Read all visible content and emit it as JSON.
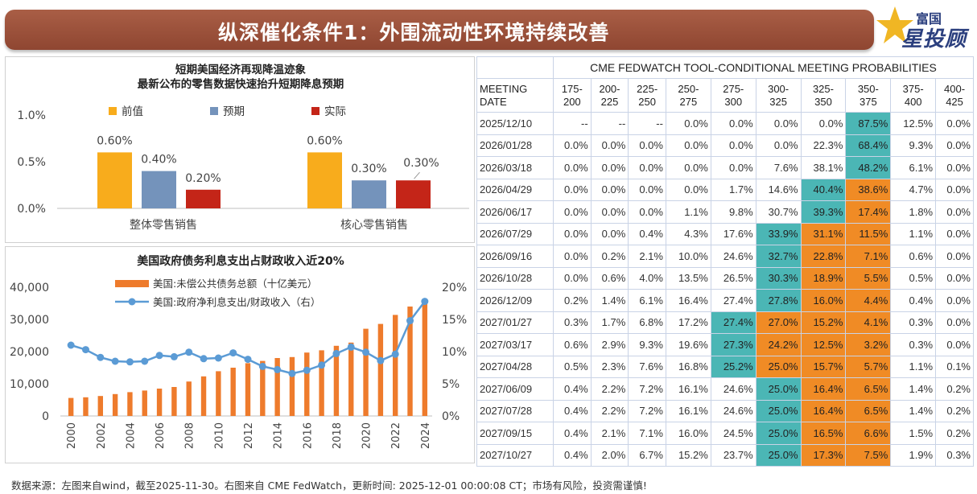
{
  "header": {
    "title": "纵深催化条件1：外围流动性环境持续改善",
    "logo_top": "富国",
    "logo_main": "星投顾"
  },
  "footer": {
    "source": "数据来源：左图来自wind，截至2025-11-30。右图来自 CME FedWatch，更新时间: 2025-12-01 00:00:08 CT；市场有风险，投资需谨慎!"
  },
  "colors": {
    "title_bar": "#9a4f39",
    "prev": "#f8ac1c",
    "expect": "#7493bb",
    "actual": "#c42518",
    "debt_bar": "#ee7b2c",
    "ratio_line": "#5b9bd5",
    "teal_cell": "#4bb6b5",
    "orange_cell": "#f08b25"
  },
  "chart_data": [
    {
      "type": "bar",
      "title": "短期美国经济再现降温迹象",
      "subtitle": "最新公布的零售数据快速抬升短期降息预期",
      "categories": [
        "整体零售销售",
        "核心零售销售"
      ],
      "series": [
        {
          "name": "前值",
          "values": [
            0.6,
            0.6
          ],
          "labels": [
            "0.60%",
            "0.60%"
          ]
        },
        {
          "name": "预期",
          "values": [
            0.4,
            0.3
          ],
          "labels": [
            "0.40%",
            "0.30%"
          ]
        },
        {
          "name": "实际",
          "values": [
            0.2,
            0.3
          ],
          "labels": [
            "0.20%",
            "0.30%"
          ]
        }
      ],
      "yticks": [
        "0.0%",
        "0.5%",
        "1.0%"
      ],
      "ylim": [
        0,
        1.0
      ],
      "legend": "top"
    },
    {
      "type": "bar+line",
      "title": "美国政府债务利息支出占财政收入近20%",
      "x": [
        "2000",
        "2001",
        "2002",
        "2003",
        "2004",
        "2005",
        "2006",
        "2007",
        "2008",
        "2009",
        "2010",
        "2011",
        "2012",
        "2013",
        "2014",
        "2015",
        "2016",
        "2017",
        "2018",
        "2019",
        "2020",
        "2021",
        "2022",
        "2023",
        "2024"
      ],
      "xticks": [
        "2000",
        "2002",
        "2004",
        "2006",
        "2008",
        "2010",
        "2012",
        "2014",
        "2016",
        "2018",
        "2020",
        "2022",
        "2024"
      ],
      "series": [
        {
          "name": "美国:未偿公共债务总额（十亿美元）",
          "axis": "left",
          "values": [
            5600,
            5800,
            6200,
            6800,
            7400,
            7900,
            8500,
            9000,
            10700,
            12300,
            13900,
            15000,
            16400,
            17100,
            18000,
            18300,
            19700,
            20400,
            21800,
            22800,
            27100,
            28600,
            31400,
            34000,
            36200
          ]
        },
        {
          "name": "美国:政府净利息支出/财政收入（右）",
          "axis": "right",
          "values": [
            11.0,
            10.3,
            9.1,
            8.5,
            8.4,
            8.5,
            9.4,
            9.2,
            9.9,
            8.9,
            9.0,
            9.8,
            8.8,
            7.7,
            7.2,
            6.6,
            7.1,
            7.9,
            9.7,
            10.7,
            9.9,
            8.6,
            9.6,
            14.8,
            17.8
          ]
        }
      ],
      "yticks_left": [
        "0",
        "10,000",
        "20,000",
        "30,000",
        "40,000"
      ],
      "ylim_left": [
        0,
        40000
      ],
      "yticks_right": [
        "0%",
        "5%",
        "10%",
        "15%",
        "20%"
      ],
      "ylim_right": [
        0,
        20
      ],
      "legend": "top-left"
    },
    {
      "type": "table",
      "title": "CME FEDWATCH TOOL-CONDITIONAL MEETING PROBABILITIES",
      "meeting_header": [
        "MEETING",
        "DATE"
      ],
      "columns": [
        [
          "175-",
          "200"
        ],
        [
          "200-",
          "225"
        ],
        [
          "225-",
          "250"
        ],
        [
          "250-",
          "275"
        ],
        [
          "275-",
          "300"
        ],
        [
          "300-",
          "325"
        ],
        [
          "325-",
          "350"
        ],
        [
          "350-",
          "375"
        ],
        [
          "375-",
          "400"
        ],
        [
          "400-",
          "425"
        ]
      ],
      "rows": [
        {
          "date": "2025/12/10",
          "cells": [
            "--",
            "--",
            "--",
            "0.0%",
            "0.0%",
            "0.0%",
            "0.0%",
            "87.5%",
            "12.5%",
            "0.0%"
          ],
          "hl": [
            "",
            "",
            "",
            "",
            "",
            "",
            "",
            "t",
            "",
            ""
          ]
        },
        {
          "date": "2026/01/28",
          "cells": [
            "0.0%",
            "0.0%",
            "0.0%",
            "0.0%",
            "0.0%",
            "0.0%",
            "22.3%",
            "68.4%",
            "9.3%",
            "0.0%"
          ],
          "hl": [
            "",
            "",
            "",
            "",
            "",
            "",
            "",
            "t",
            "",
            ""
          ]
        },
        {
          "date": "2026/03/18",
          "cells": [
            "0.0%",
            "0.0%",
            "0.0%",
            "0.0%",
            "0.0%",
            "7.6%",
            "38.1%",
            "48.2%",
            "6.1%",
            "0.0%"
          ],
          "hl": [
            "",
            "",
            "",
            "",
            "",
            "",
            "",
            "t",
            "",
            ""
          ]
        },
        {
          "date": "2026/04/29",
          "cells": [
            "0.0%",
            "0.0%",
            "0.0%",
            "0.0%",
            "1.7%",
            "14.6%",
            "40.4%",
            "38.6%",
            "4.7%",
            "0.0%"
          ],
          "hl": [
            "",
            "",
            "",
            "",
            "",
            "",
            "t",
            "o",
            "",
            ""
          ]
        },
        {
          "date": "2026/06/17",
          "cells": [
            "0.0%",
            "0.0%",
            "0.0%",
            "1.1%",
            "9.8%",
            "30.7%",
            "39.3%",
            "17.4%",
            "1.8%",
            "0.0%"
          ],
          "hl": [
            "",
            "",
            "",
            "",
            "",
            "",
            "t",
            "o",
            "",
            ""
          ]
        },
        {
          "date": "2026/07/29",
          "cells": [
            "0.0%",
            "0.0%",
            "0.4%",
            "4.3%",
            "17.6%",
            "33.9%",
            "31.1%",
            "11.5%",
            "1.1%",
            "0.0%"
          ],
          "hl": [
            "",
            "",
            "",
            "",
            "",
            "t",
            "o",
            "o",
            "",
            ""
          ]
        },
        {
          "date": "2026/09/16",
          "cells": [
            "0.0%",
            "0.2%",
            "2.1%",
            "10.0%",
            "24.6%",
            "32.7%",
            "22.8%",
            "7.1%",
            "0.6%",
            "0.0%"
          ],
          "hl": [
            "",
            "",
            "",
            "",
            "",
            "t",
            "o",
            "o",
            "",
            ""
          ]
        },
        {
          "date": "2026/10/28",
          "cells": [
            "0.0%",
            "0.6%",
            "4.0%",
            "13.5%",
            "26.5%",
            "30.3%",
            "18.9%",
            "5.5%",
            "0.5%",
            "0.0%"
          ],
          "hl": [
            "",
            "",
            "",
            "",
            "",
            "t",
            "o",
            "o",
            "",
            ""
          ]
        },
        {
          "date": "2026/12/09",
          "cells": [
            "0.2%",
            "1.4%",
            "6.1%",
            "16.4%",
            "27.4%",
            "27.8%",
            "16.0%",
            "4.4%",
            "0.4%",
            "0.0%"
          ],
          "hl": [
            "",
            "",
            "",
            "",
            "",
            "t",
            "o",
            "o",
            "",
            ""
          ]
        },
        {
          "date": "2027/01/27",
          "cells": [
            "0.3%",
            "1.7%",
            "6.8%",
            "17.2%",
            "27.4%",
            "27.0%",
            "15.2%",
            "4.1%",
            "0.3%",
            "0.0%"
          ],
          "hl": [
            "",
            "",
            "",
            "",
            "t",
            "o",
            "o",
            "o",
            "",
            ""
          ]
        },
        {
          "date": "2027/03/17",
          "cells": [
            "0.6%",
            "2.9%",
            "9.3%",
            "19.6%",
            "27.3%",
            "24.2%",
            "12.5%",
            "3.2%",
            "0.3%",
            "0.0%"
          ],
          "hl": [
            "",
            "",
            "",
            "",
            "t",
            "o",
            "o",
            "o",
            "",
            ""
          ]
        },
        {
          "date": "2027/04/28",
          "cells": [
            "0.5%",
            "2.3%",
            "7.6%",
            "16.8%",
            "25.2%",
            "25.0%",
            "15.7%",
            "5.7%",
            "1.1%",
            "0.1%"
          ],
          "hl": [
            "",
            "",
            "",
            "",
            "t",
            "o",
            "o",
            "o",
            "",
            ""
          ]
        },
        {
          "date": "2027/06/09",
          "cells": [
            "0.4%",
            "2.2%",
            "7.2%",
            "16.1%",
            "24.6%",
            "25.0%",
            "16.4%",
            "6.5%",
            "1.4%",
            "0.2%"
          ],
          "hl": [
            "",
            "",
            "",
            "",
            "",
            "t",
            "o",
            "o",
            "",
            ""
          ]
        },
        {
          "date": "2027/07/28",
          "cells": [
            "0.4%",
            "2.2%",
            "7.2%",
            "16.1%",
            "24.6%",
            "25.0%",
            "16.4%",
            "6.5%",
            "1.4%",
            "0.2%"
          ],
          "hl": [
            "",
            "",
            "",
            "",
            "",
            "t",
            "o",
            "o",
            "",
            ""
          ]
        },
        {
          "date": "2027/09/15",
          "cells": [
            "0.4%",
            "2.1%",
            "7.1%",
            "16.0%",
            "24.5%",
            "25.0%",
            "16.5%",
            "6.6%",
            "1.5%",
            "0.2%"
          ],
          "hl": [
            "",
            "",
            "",
            "",
            "",
            "t",
            "o",
            "o",
            "",
            ""
          ]
        },
        {
          "date": "2027/10/27",
          "cells": [
            "0.4%",
            "2.0%",
            "6.7%",
            "15.2%",
            "23.7%",
            "25.0%",
            "17.3%",
            "7.5%",
            "1.9%",
            "0.3%"
          ],
          "hl": [
            "",
            "",
            "",
            "",
            "",
            "t",
            "o",
            "o",
            "",
            ""
          ]
        }
      ]
    }
  ]
}
